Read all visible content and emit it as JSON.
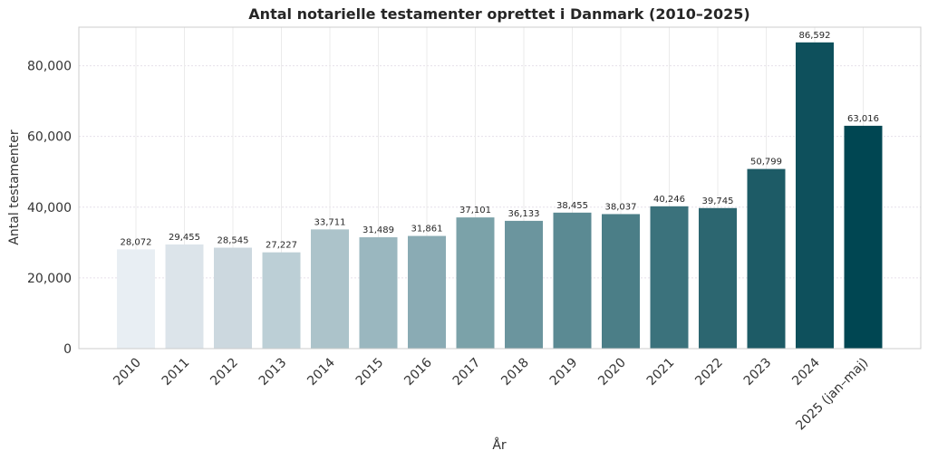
{
  "chart_data": {
    "type": "bar",
    "title": "Antal notarielle testamenter oprettet i Danmark (2010–2025)",
    "xlabel": "År",
    "ylabel": "Antal testamenter",
    "categories": [
      "2010",
      "2011",
      "2012",
      "2013",
      "2014",
      "2015",
      "2016",
      "2017",
      "2018",
      "2019",
      "2020",
      "2021",
      "2022",
      "2023",
      "2024",
      "2025 (jan–maj)"
    ],
    "values": [
      28072,
      29455,
      28545,
      27227,
      33711,
      31489,
      31861,
      37101,
      36133,
      38455,
      38037,
      40246,
      39745,
      50799,
      86592,
      63016
    ],
    "value_labels": [
      "28,072",
      "29,455",
      "28,545",
      "27,227",
      "33,711",
      "31,489",
      "31,861",
      "37,101",
      "36,133",
      "38,455",
      "38,037",
      "40,246",
      "39,745",
      "50,799",
      "86,592",
      "63,016"
    ],
    "yticks": [
      0,
      20000,
      40000,
      60000,
      80000
    ],
    "ytick_labels": [
      "0",
      "20,000",
      "40,000",
      "60,000",
      "80,000"
    ],
    "ylim": [
      0,
      90900
    ],
    "grid": true,
    "legend": "none",
    "colors": [
      "#e8eef3",
      "#dce4ea",
      "#ccd8df",
      "#bccfd6",
      "#acc3ca",
      "#9ab7bf",
      "#8aabb4",
      "#7ba2a9",
      "#6b959e",
      "#5b8a93",
      "#4b7e87",
      "#3b727c",
      "#2c6670",
      "#1d5b66",
      "#0e505c",
      "#004652"
    ]
  }
}
